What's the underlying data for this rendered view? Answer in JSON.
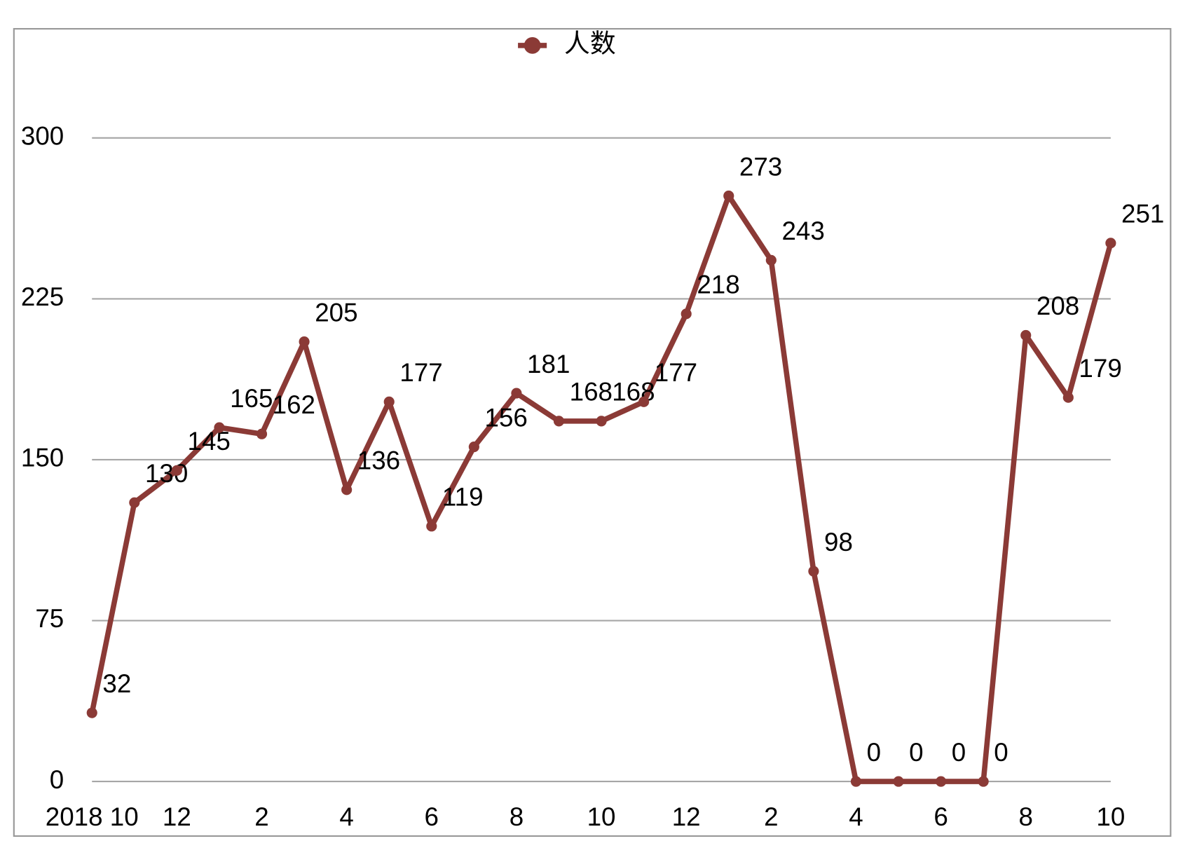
{
  "chart_data": {
    "type": "line",
    "categories": [
      "2018 10",
      null,
      "12",
      null,
      "2",
      null,
      "4",
      null,
      "6",
      null,
      "8",
      null,
      "10",
      null,
      "12",
      null,
      "2",
      null,
      "4",
      null,
      "6",
      null,
      "8",
      null,
      "10"
    ],
    "series": [
      {
        "name": "人数",
        "color": "#8b3a36",
        "values": [
          32,
          130,
          145,
          165,
          162,
          205,
          136,
          177,
          119,
          156,
          181,
          168,
          168,
          177,
          218,
          273,
          243,
          98,
          0,
          0,
          0,
          0,
          208,
          179,
          251
        ]
      }
    ],
    "ylim": [
      0,
      300
    ],
    "yticks": [
      0,
      75,
      150,
      225,
      300
    ],
    "grid": true,
    "legend": "top"
  }
}
